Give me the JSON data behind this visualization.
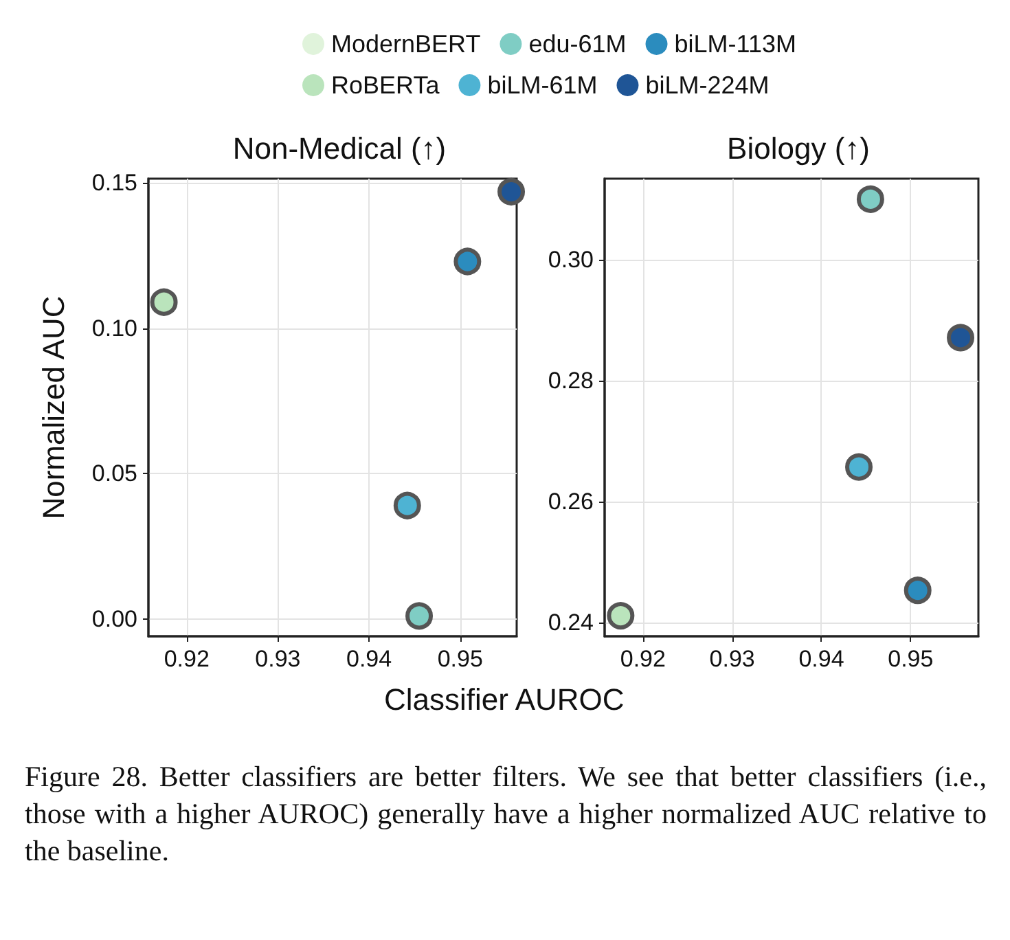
{
  "chart_data": [
    {
      "type": "scatter",
      "title": "Non-Medical (↑)",
      "xlabel": "Classifier AUROC",
      "ylabel": "Normalized AUC",
      "xlim": [
        0.9158,
        0.9562
      ],
      "ylim": [
        -0.006,
        0.1515
      ],
      "xticks": [
        0.92,
        0.93,
        0.94,
        0.95
      ],
      "yticks": [
        {
          "value": 0,
          "label": "0.00"
        },
        {
          "value": 0.05,
          "label": "0.05"
        },
        {
          "value": 0.1,
          "label": "0.10"
        },
        {
          "value": 0.15,
          "label": "0.15"
        }
      ],
      "grid": true,
      "legend": "top",
      "marker": "circle",
      "series": [
        {
          "name": "ModernBERT",
          "color": "#e0f3db"
        },
        {
          "name": "RoBERTa",
          "color": "#bae4bc",
          "x": [
            0.9175
          ],
          "values": [
            0.109
          ]
        },
        {
          "name": "edu-61M",
          "color": "#7fcdc4",
          "x": [
            0.9455
          ],
          "values": [
            0.001
          ]
        },
        {
          "name": "biLM-61M",
          "color": "#4eb3d3",
          "x": [
            0.9442
          ],
          "values": [
            0.039
          ]
        },
        {
          "name": "biLM-113M",
          "color": "#2b8cbe",
          "x": [
            0.9508
          ],
          "values": [
            0.123
          ]
        },
        {
          "name": "biLM-224M",
          "color": "#1f5596",
          "x": [
            0.9556
          ],
          "values": [
            0.147
          ]
        }
      ],
      "annotations": [
        "Figure 28. Better classifiers are better filters. We see that better classifiers (i.e., those with a higher AUROC) generally have a higher normalized AUC relative to the baseline."
      ]
    },
    {
      "type": "scatter",
      "title": "Biology (↑)",
      "xlim": [
        0.9157,
        0.9576
      ],
      "ylim": [
        0.2377,
        0.3134
      ],
      "xticks": [
        0.92,
        0.93,
        0.94,
        0.95
      ],
      "yticks": [
        {
          "value": 0.24,
          "label": "0.24"
        },
        {
          "value": 0.26,
          "label": "0.26"
        },
        {
          "value": 0.28,
          "label": "0.28"
        },
        {
          "value": 0.3,
          "label": "0.30"
        }
      ],
      "grid": true,
      "marker": "circle",
      "series": [
        {
          "color": "#bae4bc",
          "x": [
            0.9175
          ],
          "values": [
            0.2411
          ]
        },
        {
          "color": "#7fcdc4",
          "x": [
            0.9455
          ],
          "values": [
            0.31
          ]
        },
        {
          "color": "#4eb3d3",
          "x": [
            0.9442
          ],
          "values": [
            0.2657
          ]
        },
        {
          "color": "#2b8cbe",
          "x": [
            0.9508
          ],
          "values": [
            0.2453
          ]
        },
        {
          "color": "#1f5596",
          "x": [
            0.9556
          ],
          "values": [
            0.2871
          ]
        }
      ]
    }
  ]
}
